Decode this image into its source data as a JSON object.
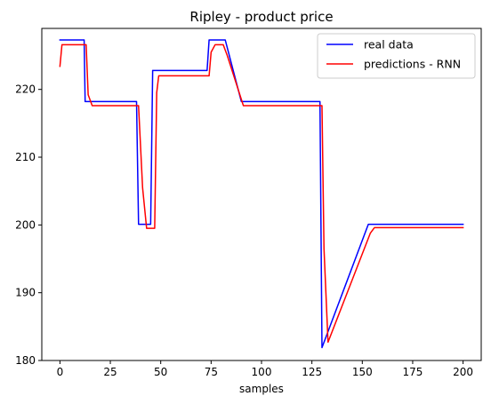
{
  "chart_data": {
    "type": "line",
    "title": "Ripley - product price",
    "xlabel": "samples",
    "ylabel": "",
    "xlim": [
      -9,
      209
    ],
    "ylim": [
      180,
      229
    ],
    "x_ticks": [
      0,
      25,
      50,
      75,
      100,
      125,
      150,
      175,
      200
    ],
    "y_ticks": [
      180,
      190,
      200,
      210,
      220
    ],
    "grid": false,
    "legend_position": "top-right",
    "series": [
      {
        "name": "real data",
        "color": "#0000ff",
        "points": [
          [
            0,
            227.3
          ],
          [
            12,
            227.3
          ],
          [
            12.5,
            218.2
          ],
          [
            38,
            218.2
          ],
          [
            39,
            200.1
          ],
          [
            45,
            200.1
          ],
          [
            46,
            222.8
          ],
          [
            73,
            222.8
          ],
          [
            74,
            227.3
          ],
          [
            82,
            227.3
          ],
          [
            90,
            218.2
          ],
          [
            129,
            218.2
          ],
          [
            130,
            181.9
          ],
          [
            153,
            200.1
          ],
          [
            200,
            200.1
          ]
        ]
      },
      {
        "name": "predictions - RNN",
        "color": "#ff0000",
        "points": [
          [
            0,
            223.4
          ],
          [
            1,
            226.6
          ],
          [
            13,
            226.6
          ],
          [
            14,
            219.2
          ],
          [
            16,
            217.6
          ],
          [
            39,
            217.6
          ],
          [
            41,
            205.5
          ],
          [
            43,
            199.5
          ],
          [
            47,
            199.5
          ],
          [
            48,
            219.5
          ],
          [
            49,
            222.0
          ],
          [
            74,
            222.0
          ],
          [
            75,
            225.5
          ],
          [
            77,
            226.6
          ],
          [
            81,
            226.6
          ],
          [
            83,
            225.0
          ],
          [
            91,
            217.6
          ],
          [
            130,
            217.6
          ],
          [
            131,
            196.5
          ],
          [
            133,
            182.7
          ],
          [
            154,
            198.8
          ],
          [
            156,
            199.6
          ],
          [
            200,
            199.6
          ]
        ]
      }
    ]
  }
}
